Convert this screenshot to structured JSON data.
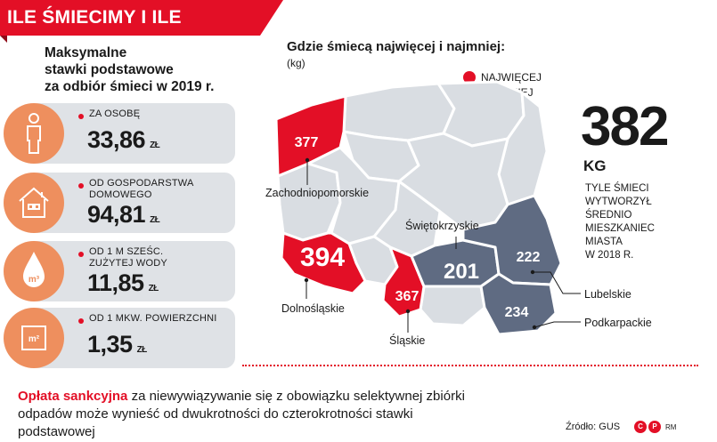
{
  "header": {
    "title": "ILE ŚMIECIMY I ILE PŁACIMY"
  },
  "left_panel": {
    "title_lines": [
      "Maksymalne",
      "stawki podstawowe",
      "za odbiór śmieci w 2019 r."
    ],
    "stats": [
      {
        "icon": "person-icon",
        "label_lines": [
          "ZA OSOBĘ"
        ],
        "value": "33,86",
        "unit": "ZŁ"
      },
      {
        "icon": "house-icon",
        "label_lines": [
          "OD GOSPODARSTWA",
          "DOMOWEGO"
        ],
        "value": "94,81",
        "unit": "ZŁ"
      },
      {
        "icon": "water-drop-icon",
        "label_lines": [
          "OD 1 M SZEŚC.",
          "ZUŻYTEJ WODY"
        ],
        "value": "11,85",
        "unit": "ZŁ"
      },
      {
        "icon": "area-square-icon",
        "label_lines": [
          "OD 1 MKW. POWIERZCHNI"
        ],
        "value": "1,35",
        "unit": "ZŁ"
      }
    ],
    "icon_texts": {
      "drop": "m³",
      "area": "m²"
    }
  },
  "map": {
    "title": "Gdzie śmiecą najwięcej i najmniej:",
    "subtitle": "(kg)",
    "legend": [
      {
        "label": "NAJWIĘCEJ",
        "color": "#e30f26"
      },
      {
        "label": "NAJMNIEJ",
        "color": "#5f6b82"
      }
    ],
    "regions": [
      {
        "name": "Zachodniopomorskie",
        "value": "377",
        "group": "most"
      },
      {
        "name": "Dolnośląskie",
        "value": "394",
        "group": "most"
      },
      {
        "name": "Śląskie",
        "value": "367",
        "group": "most"
      },
      {
        "name": "Świętokrzyskie",
        "value": "201",
        "group": "least"
      },
      {
        "name": "Lubelskie",
        "value": "222",
        "group": "least"
      },
      {
        "name": "Podkarpackie",
        "value": "234",
        "group": "least"
      }
    ],
    "colors": {
      "most": "#e30f26",
      "least": "#5f6b82",
      "other": "#d9dde2"
    }
  },
  "highlight": {
    "number": "382",
    "unit": "KG",
    "description_lines": [
      "TYLE ŚMIECI",
      "WYTWORZYŁ",
      "ŚREDNIO",
      "MIESZKANIEC",
      "MIASTA",
      "W 2018 R."
    ]
  },
  "footer": {
    "highlight": "Opłata sankcyjna",
    "text": " za niewywiązywanie się z obowiązku selektywnej zbiórki odpadów może wynieść od dwukrotności do czterokrotności stawki podstawowej",
    "source": "Źródło: GUS",
    "logo_letters": [
      "C",
      "P"
    ],
    "logo_suffix": "RM"
  }
}
